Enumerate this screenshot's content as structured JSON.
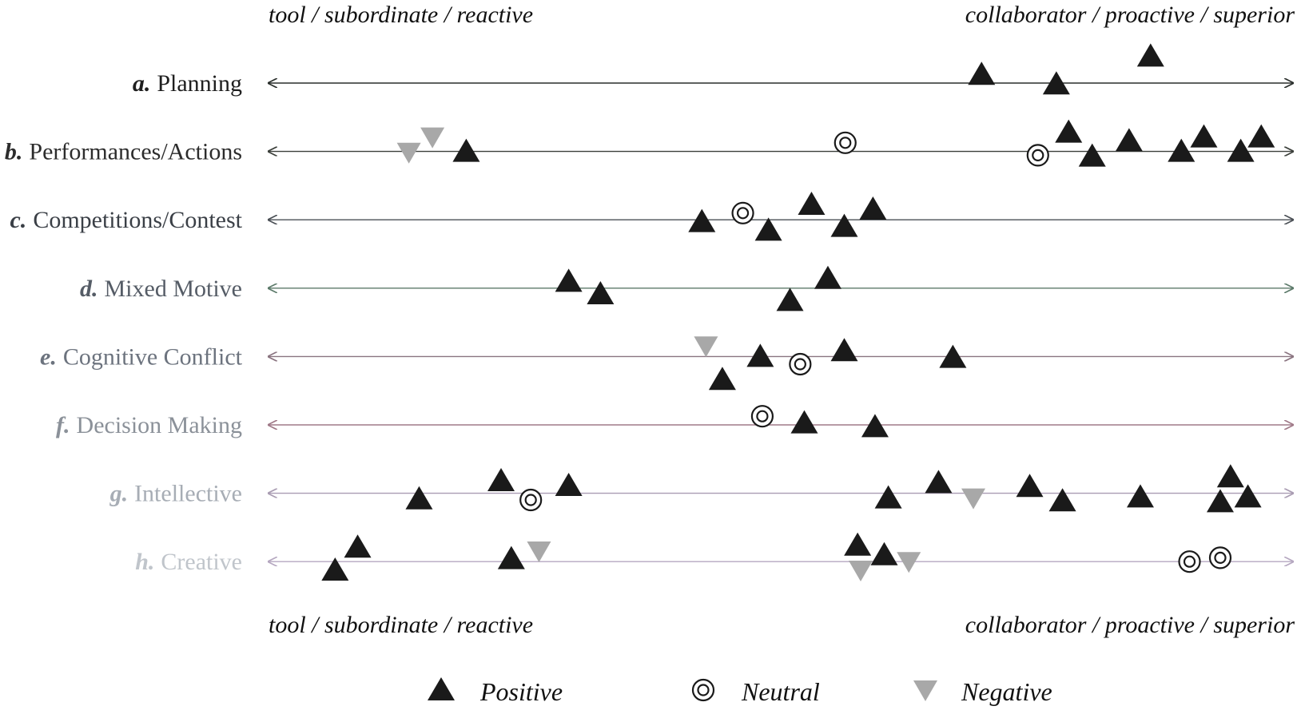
{
  "chart_data": {
    "type": "scatter",
    "title": "",
    "x_axis": {
      "left_label": "tool / subordinate / reactive",
      "right_label": "collaborator / proactive / superior",
      "xlim": [
        0,
        100
      ],
      "ticks": "none"
    },
    "legend": [
      {
        "key": "positive",
        "label": "Positive",
        "marker": "triangle-up",
        "color": "#1a1a1a"
      },
      {
        "key": "neutral",
        "label": "Neutral",
        "marker": "double-circle",
        "color": "#1a1a1a"
      },
      {
        "key": "negative",
        "label": "Negative",
        "marker": "triangle-down",
        "color": "#a8a8a8"
      }
    ],
    "rows": [
      {
        "id": "a",
        "letter": "a.",
        "name": "Planning",
        "color": "#1f1f1f",
        "line_color": "#2a2f2c",
        "points": [
          {
            "x": 69.6,
            "y": 0.45,
            "s": "positive"
          },
          {
            "x": 76.9,
            "y": -0.05,
            "s": "positive"
          },
          {
            "x": 86.1,
            "y": 1.4,
            "s": "positive"
          }
        ]
      },
      {
        "id": "b",
        "letter": "b.",
        "name": "Performances/Actions",
        "color": "#2c2c2c",
        "line_color": "#3b3f3a",
        "points": [
          {
            "x": 13.7,
            "y": -0.05,
            "s": "negative"
          },
          {
            "x": 16.0,
            "y": 0.75,
            "s": "negative"
          },
          {
            "x": 19.3,
            "y": 0.0,
            "s": "positive"
          },
          {
            "x": 56.3,
            "y": 0.45,
            "s": "neutral"
          },
          {
            "x": 75.1,
            "y": -0.2,
            "s": "neutral"
          },
          {
            "x": 78.1,
            "y": 1.0,
            "s": "positive"
          },
          {
            "x": 80.4,
            "y": -0.25,
            "s": "positive"
          },
          {
            "x": 84.0,
            "y": 0.55,
            "s": "positive"
          },
          {
            "x": 89.1,
            "y": 0.0,
            "s": "positive"
          },
          {
            "x": 91.3,
            "y": 0.75,
            "s": "positive"
          },
          {
            "x": 94.9,
            "y": 0.0,
            "s": "positive"
          },
          {
            "x": 96.9,
            "y": 0.75,
            "s": "positive"
          }
        ]
      },
      {
        "id": "c",
        "letter": "c.",
        "name": "Competitions/Contest",
        "color": "#3a3f46",
        "line_color": "#4a4f55",
        "points": [
          {
            "x": 42.3,
            "y": -0.1,
            "s": "positive"
          },
          {
            "x": 46.3,
            "y": 0.35,
            "s": "neutral"
          },
          {
            "x": 48.8,
            "y": -0.55,
            "s": "positive"
          },
          {
            "x": 53.0,
            "y": 0.8,
            "s": "positive"
          },
          {
            "x": 56.2,
            "y": -0.35,
            "s": "positive"
          },
          {
            "x": 59.0,
            "y": 0.55,
            "s": "positive"
          }
        ]
      },
      {
        "id": "d",
        "letter": "d.",
        "name": "Mixed Motive",
        "color": "#555c66",
        "line_color": "#5c7a6a",
        "points": [
          {
            "x": 29.3,
            "y": 0.35,
            "s": "positive"
          },
          {
            "x": 32.4,
            "y": -0.3,
            "s": "positive"
          },
          {
            "x": 50.9,
            "y": -0.65,
            "s": "positive"
          },
          {
            "x": 54.6,
            "y": 0.5,
            "s": "positive"
          }
        ]
      },
      {
        "id": "e",
        "letter": "e.",
        "name": "Cognitive Conflict",
        "color": "#6c737e",
        "line_color": "#8a7480",
        "points": [
          {
            "x": 42.7,
            "y": 0.55,
            "s": "negative"
          },
          {
            "x": 44.3,
            "y": -1.2,
            "s": "positive"
          },
          {
            "x": 48.0,
            "y": 0.0,
            "s": "positive"
          },
          {
            "x": 51.9,
            "y": -0.4,
            "s": "neutral"
          },
          {
            "x": 56.2,
            "y": 0.3,
            "s": "positive"
          },
          {
            "x": 66.8,
            "y": -0.05,
            "s": "positive"
          }
        ]
      },
      {
        "id": "f",
        "letter": "f.",
        "name": "Decision Making",
        "color": "#8b9199",
        "line_color": "#a07a88",
        "points": [
          {
            "x": 48.2,
            "y": 0.45,
            "s": "neutral"
          },
          {
            "x": 52.3,
            "y": 0.1,
            "s": "positive"
          },
          {
            "x": 59.2,
            "y": -0.1,
            "s": "positive"
          }
        ]
      },
      {
        "id": "g",
        "letter": "g.",
        "name": "Intellective",
        "color": "#a7adb5",
        "line_color": "#a99cb2",
        "points": [
          {
            "x": 14.7,
            "y": -0.3,
            "s": "positive"
          },
          {
            "x": 22.7,
            "y": 0.65,
            "s": "positive"
          },
          {
            "x": 25.6,
            "y": -0.35,
            "s": "neutral"
          },
          {
            "x": 29.3,
            "y": 0.4,
            "s": "positive"
          },
          {
            "x": 60.5,
            "y": -0.25,
            "s": "positive"
          },
          {
            "x": 65.4,
            "y": 0.55,
            "s": "positive"
          },
          {
            "x": 68.8,
            "y": -0.25,
            "s": "negative"
          },
          {
            "x": 74.3,
            "y": 0.35,
            "s": "positive"
          },
          {
            "x": 77.5,
            "y": -0.4,
            "s": "positive"
          },
          {
            "x": 85.1,
            "y": -0.2,
            "s": "positive"
          },
          {
            "x": 92.9,
            "y": -0.45,
            "s": "positive"
          },
          {
            "x": 93.9,
            "y": 0.85,
            "s": "positive"
          },
          {
            "x": 95.6,
            "y": -0.2,
            "s": "positive"
          }
        ]
      },
      {
        "id": "h",
        "letter": "h.",
        "name": "Creative",
        "color": "#c0c5cb",
        "line_color": "#b5a7c0",
        "points": [
          {
            "x": 6.5,
            "y": -0.45,
            "s": "positive"
          },
          {
            "x": 8.7,
            "y": 0.75,
            "s": "positive"
          },
          {
            "x": 23.7,
            "y": 0.15,
            "s": "positive"
          },
          {
            "x": 26.4,
            "y": 0.55,
            "s": "negative"
          },
          {
            "x": 57.5,
            "y": 0.85,
            "s": "positive"
          },
          {
            "x": 57.8,
            "y": -0.45,
            "s": "negative"
          },
          {
            "x": 60.1,
            "y": 0.35,
            "s": "positive"
          },
          {
            "x": 62.5,
            "y": 0.0,
            "s": "negative"
          },
          {
            "x": 89.9,
            "y": 0.0,
            "s": "neutral"
          },
          {
            "x": 92.9,
            "y": 0.2,
            "s": "neutral"
          }
        ]
      }
    ]
  }
}
